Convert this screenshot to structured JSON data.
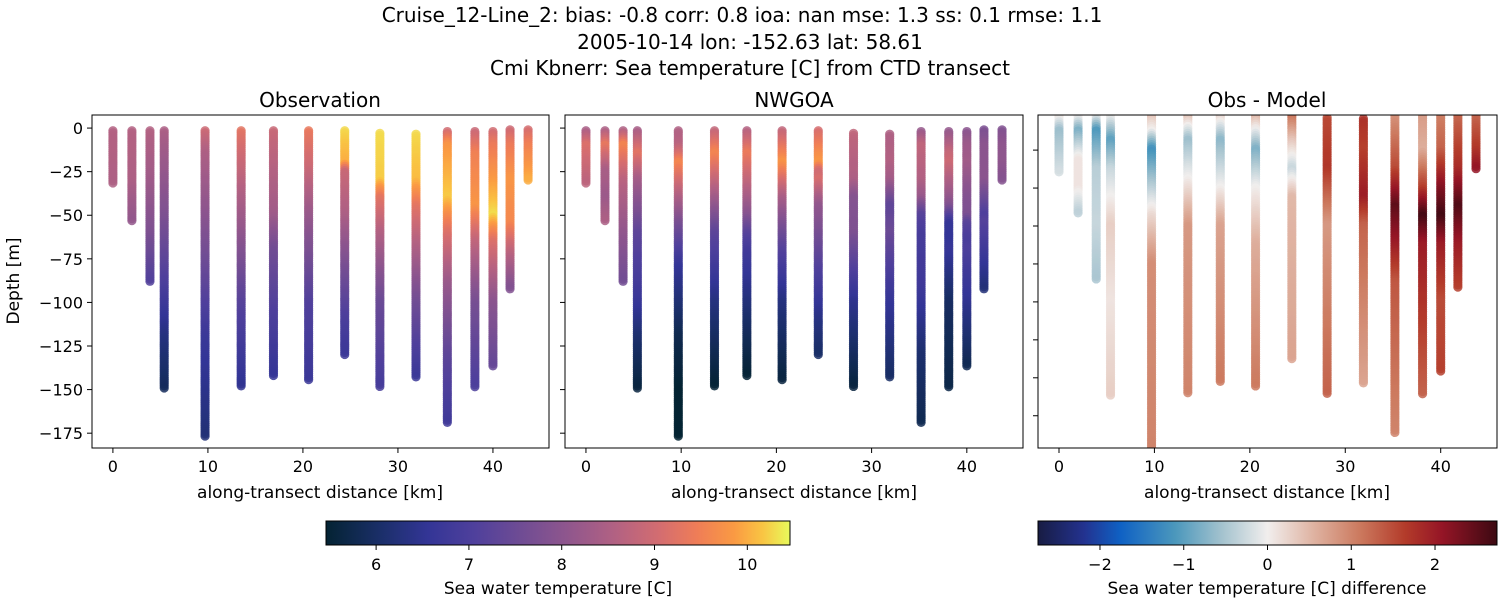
{
  "title_lines": [
    "Cruise_12-Line_2: bias: -0.8  corr: 0.8  ioa: nan  mse: 1.3  ss: 0.1  rmse: 1.1",
    "2005-10-14 lon: -152.63 lat: 58.61",
    "Cmi Kbnerr: Sea temperature [C] from CTD transect"
  ],
  "chart_data": [
    {
      "type": "scatter",
      "title": "Observation",
      "xlabel": "along-transect distance [km]",
      "ylabel": "Depth [m]",
      "xlim": [
        -2.2,
        45.9
      ],
      "ylim": [
        -183.5,
        7.5
      ],
      "xticks": [
        0,
        10,
        20,
        30,
        40
      ],
      "yticks": [
        0,
        -25,
        -50,
        -75,
        -100,
        -125,
        -150,
        -175
      ],
      "colormap": "thermal",
      "clim": [
        5.46,
        10.46
      ],
      "field": "obs"
    },
    {
      "type": "scatter",
      "title": "NWGOA",
      "xlabel": "along-transect distance [km]",
      "ylabel": "",
      "xlim": [
        -2.2,
        45.9
      ],
      "ylim": [
        -183.5,
        7.5
      ],
      "xticks": [
        0,
        10,
        20,
        30,
        40
      ],
      "yticks": [
        0,
        -25,
        -50,
        -75,
        -100,
        -125,
        -150,
        -175
      ],
      "colormap": "thermal",
      "clim": [
        5.46,
        10.46
      ],
      "field": "model"
    },
    {
      "type": "scatter",
      "title": "Obs - Model",
      "xlabel": "along-transect distance [km]",
      "ylabel": "",
      "xlim": [
        -2.2,
        45.9
      ],
      "ylim": [
        -177,
        -1.5
      ],
      "xticks": [
        0,
        10,
        20,
        30,
        40
      ],
      "yticks": [
        -20,
        -40,
        -60,
        -80,
        -100,
        -120,
        -140,
        -160
      ],
      "colormap": "balance",
      "clim": [
        -2.74,
        2.74
      ],
      "field": "diff"
    }
  ],
  "colorbars": [
    {
      "label": "Sea water temperature [C]",
      "ticks": [
        6,
        7,
        8,
        9,
        10
      ],
      "tick_labels": [
        "6",
        "7",
        "8",
        "9",
        "10"
      ],
      "range": [
        5.46,
        10.46
      ],
      "colormap": "thermal"
    },
    {
      "label": "Sea water temperature [C] difference",
      "ticks": [
        -2,
        -1,
        0,
        1,
        2
      ],
      "tick_labels": [
        "−2",
        "−1",
        "0",
        "1",
        "2"
      ],
      "range": [
        -2.74,
        2.74
      ],
      "colormap": "balance"
    }
  ],
  "colormaps": {
    "thermal": [
      [
        0,
        "#042333"
      ],
      [
        0.12,
        "#1b2f6a"
      ],
      [
        0.22,
        "#333596"
      ],
      [
        0.32,
        "#4f409c"
      ],
      [
        0.42,
        "#6f4c94"
      ],
      [
        0.52,
        "#8f568d"
      ],
      [
        0.62,
        "#b16183"
      ],
      [
        0.72,
        "#d46d70"
      ],
      [
        0.8,
        "#ef7d57"
      ],
      [
        0.88,
        "#fa9a43"
      ],
      [
        0.94,
        "#f9c443"
      ],
      [
        1,
        "#e8fa5b"
      ]
    ],
    "balance": [
      [
        0,
        "#181c43"
      ],
      [
        0.1,
        "#23328f"
      ],
      [
        0.18,
        "#0f61c4"
      ],
      [
        0.3,
        "#4c98bc"
      ],
      [
        0.4,
        "#a3c2ce"
      ],
      [
        0.5,
        "#f1eeed"
      ],
      [
        0.6,
        "#dfb3a2"
      ],
      [
        0.7,
        "#cc7a5f"
      ],
      [
        0.8,
        "#b33b2a"
      ],
      [
        0.88,
        "#951526"
      ],
      [
        1,
        "#3c0912"
      ]
    ]
  },
  "casts": [
    {
      "x": 0.0,
      "top": -1.5,
      "bottom": -32,
      "obs": [
        [
          0,
          8.6
        ],
        [
          -32,
          8.5
        ]
      ],
      "diff": [
        [
          0,
          0.3
        ],
        [
          -10,
          -0.6
        ],
        [
          -32,
          -0.2
        ]
      ]
    },
    {
      "x": 2.0,
      "top": -1.5,
      "bottom": -54,
      "obs": [
        [
          0,
          8.6
        ],
        [
          -30,
          8.5
        ],
        [
          -54,
          8.1
        ]
      ],
      "diff": [
        [
          0,
          0.3
        ],
        [
          -10,
          -0.8
        ],
        [
          -25,
          0.1
        ],
        [
          -40,
          0.1
        ],
        [
          -54,
          -0.4
        ]
      ]
    },
    {
      "x": 3.9,
      "top": -1.5,
      "bottom": -88,
      "obs": [
        [
          0,
          8.6
        ],
        [
          -30,
          8.3
        ],
        [
          -60,
          7.8
        ],
        [
          -88,
          7.1
        ]
      ],
      "diff": [
        [
          0,
          0.3
        ],
        [
          -10,
          -1.1
        ],
        [
          -30,
          -0.4
        ],
        [
          -60,
          -0.3
        ],
        [
          -88,
          -0.5
        ]
      ]
    },
    {
      "x": 5.4,
      "top": -1.5,
      "bottom": -150,
      "obs": [
        [
          0,
          8.5
        ],
        [
          -50,
          7.8
        ],
        [
          -90,
          7.0
        ],
        [
          -120,
          6.3
        ],
        [
          -150,
          5.9
        ]
      ],
      "diff": [
        [
          0,
          0.2
        ],
        [
          -15,
          -1.0
        ],
        [
          -30,
          -0.3
        ],
        [
          -60,
          0.3
        ],
        [
          -100,
          0.1
        ],
        [
          -150,
          0.3
        ]
      ]
    },
    {
      "x": 9.7,
      "top": -1.5,
      "bottom": -177,
      "obs": [
        [
          0,
          9.0
        ],
        [
          -15,
          8.5
        ],
        [
          -50,
          8.0
        ],
        [
          -90,
          7.3
        ],
        [
          -120,
          6.7
        ],
        [
          -177,
          6.2
        ]
      ],
      "diff": [
        [
          0,
          0.5
        ],
        [
          -10,
          0.0
        ],
        [
          -20,
          -1.2
        ],
        [
          -35,
          -0.6
        ],
        [
          -55,
          0.2
        ],
        [
          -80,
          0.9
        ],
        [
          -177,
          1.0
        ]
      ]
    },
    {
      "x": 13.5,
      "top": -1.5,
      "bottom": -148,
      "obs": [
        [
          0,
          9.3
        ],
        [
          -20,
          8.9
        ],
        [
          -60,
          8.1
        ],
        [
          -100,
          7.2
        ],
        [
          -148,
          6.5
        ]
      ],
      "diff": [
        [
          0,
          0.6
        ],
        [
          -15,
          -0.6
        ],
        [
          -35,
          0.0
        ],
        [
          -60,
          0.8
        ],
        [
          -148,
          1.0
        ]
      ]
    },
    {
      "x": 16.9,
      "top": -1.5,
      "bottom": -142,
      "obs": [
        [
          0,
          8.9
        ],
        [
          -50,
          8.3
        ],
        [
          -70,
          7.6
        ],
        [
          -110,
          7.0
        ],
        [
          -142,
          6.6
        ]
      ],
      "diff": [
        [
          0,
          0.4
        ],
        [
          -15,
          -0.7
        ],
        [
          -40,
          0.0
        ],
        [
          -60,
          0.7
        ],
        [
          -142,
          1.1
        ]
      ]
    },
    {
      "x": 20.6,
      "top": -1.5,
      "bottom": -145,
      "obs": [
        [
          0,
          9.4
        ],
        [
          -20,
          9.0
        ],
        [
          -50,
          8.2
        ],
        [
          -100,
          7.1
        ],
        [
          -145,
          6.7
        ]
      ],
      "diff": [
        [
          0,
          0.7
        ],
        [
          -20,
          -0.8
        ],
        [
          -40,
          0.0
        ],
        [
          -70,
          0.6
        ],
        [
          -145,
          1.1
        ]
      ]
    },
    {
      "x": 24.4,
      "top": -1.5,
      "bottom": -131,
      "obs": [
        [
          0,
          10.3
        ],
        [
          -20,
          10.0
        ],
        [
          -25,
          8.9
        ],
        [
          -50,
          8.5
        ],
        [
          -80,
          7.7
        ],
        [
          -110,
          7.0
        ],
        [
          -131,
          6.7
        ]
      ],
      "diff": [
        [
          0,
          1.3
        ],
        [
          -15,
          0.4
        ],
        [
          -30,
          -0.3
        ],
        [
          -45,
          0.5
        ],
        [
          -131,
          0.7
        ]
      ]
    },
    {
      "x": 28.1,
      "top": -3,
      "bottom": -149,
      "obs": [
        [
          0,
          10.3
        ],
        [
          -30,
          10.2
        ],
        [
          -40,
          9.3
        ],
        [
          -60,
          8.6
        ],
        [
          -100,
          7.5
        ],
        [
          -149,
          6.9
        ]
      ],
      "diff": [
        [
          0,
          1.5
        ],
        [
          -30,
          1.7
        ],
        [
          -60,
          0.8
        ],
        [
          -149,
          1.3
        ]
      ]
    },
    {
      "x": 31.9,
      "top": -3.5,
      "bottom": -143,
      "obs": [
        [
          0,
          10.3
        ],
        [
          -30,
          10.1
        ],
        [
          -45,
          9.3
        ],
        [
          -60,
          8.8
        ],
        [
          -100,
          7.6
        ],
        [
          -143,
          6.7
        ]
      ],
      "diff": [
        [
          0,
          1.8
        ],
        [
          -20,
          1.6
        ],
        [
          -45,
          2.0
        ],
        [
          -60,
          1.3
        ],
        [
          -100,
          1.0
        ],
        [
          -143,
          0.7
        ]
      ]
    },
    {
      "x": 35.2,
      "top": -2,
      "bottom": -169,
      "obs": [
        [
          0,
          8.8
        ],
        [
          -10,
          9.8
        ],
        [
          -40,
          10.2
        ],
        [
          -60,
          9.2
        ],
        [
          -90,
          8.2
        ],
        [
          -130,
          7.3
        ],
        [
          -169,
          6.8
        ]
      ],
      "diff": [
        [
          0,
          0.8
        ],
        [
          -30,
          1.5
        ],
        [
          -50,
          2.5
        ],
        [
          -70,
          2.0
        ],
        [
          -90,
          1.4
        ],
        [
          -169,
          1.0
        ]
      ]
    },
    {
      "x": 38.1,
      "top": -2,
      "bottom": -149,
      "obs": [
        [
          0,
          8.8
        ],
        [
          -15,
          9.5
        ],
        [
          -45,
          9.8
        ],
        [
          -65,
          8.8
        ],
        [
          -100,
          7.7
        ],
        [
          -149,
          7.0
        ]
      ],
      "diff": [
        [
          0,
          0.8
        ],
        [
          -20,
          0.6
        ],
        [
          -40,
          1.6
        ],
        [
          -55,
          2.7
        ],
        [
          -70,
          2.0
        ],
        [
          -149,
          1.3
        ]
      ]
    },
    {
      "x": 40.0,
      "top": -2,
      "bottom": -137,
      "obs": [
        [
          0,
          8.9
        ],
        [
          -10,
          9.4
        ],
        [
          -50,
          10.3
        ],
        [
          -65,
          9.2
        ],
        [
          -100,
          8.0
        ],
        [
          -137,
          7.4
        ]
      ],
      "diff": [
        [
          0,
          1.0
        ],
        [
          -20,
          1.3
        ],
        [
          -40,
          2.2
        ],
        [
          -55,
          2.7
        ],
        [
          -70,
          2.0
        ],
        [
          -100,
          1.5
        ],
        [
          -137,
          1.6
        ]
      ]
    },
    {
      "x": 41.8,
      "top": -1,
      "bottom": -93,
      "obs": [
        [
          0,
          8.9
        ],
        [
          -10,
          9.4
        ],
        [
          -30,
          9.8
        ],
        [
          -55,
          9.6
        ],
        [
          -70,
          8.8
        ],
        [
          -93,
          7.8
        ]
      ],
      "diff": [
        [
          0,
          1.2
        ],
        [
          -30,
          1.8
        ],
        [
          -50,
          2.6
        ],
        [
          -70,
          2.0
        ],
        [
          -93,
          1.6
        ]
      ]
    },
    {
      "x": 43.7,
      "top": -1,
      "bottom": -30,
      "obs": [
        [
          0,
          9.0
        ],
        [
          -10,
          9.5
        ],
        [
          -30,
          10.0
        ]
      ],
      "diff": [
        [
          0,
          1.2
        ],
        [
          -20,
          1.7
        ],
        [
          -30,
          2.1
        ]
      ]
    }
  ]
}
